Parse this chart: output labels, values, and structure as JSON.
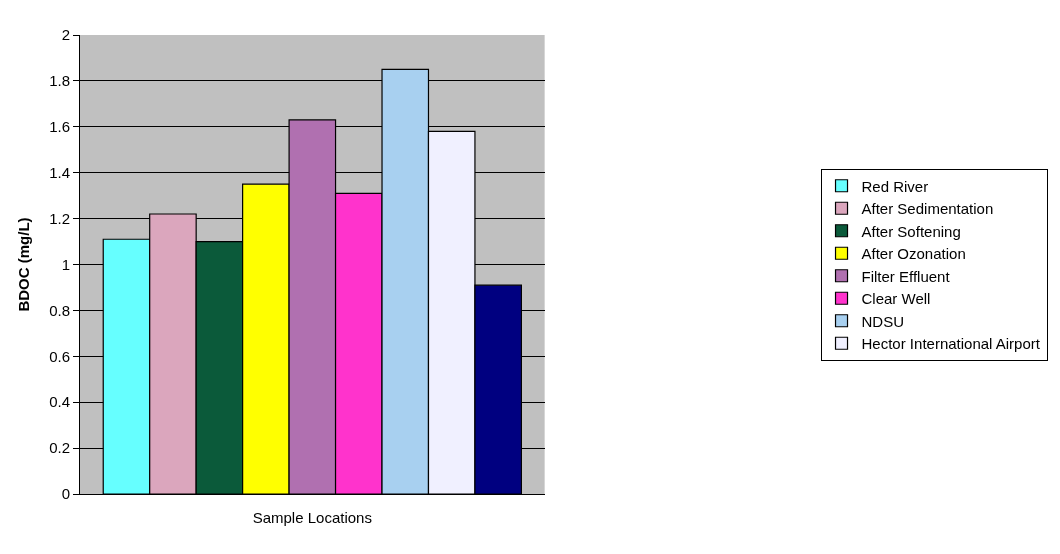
{
  "chart_data": {
    "type": "bar",
    "xlabel": "Sample Locations",
    "ylabel": "BDOC (mg/L)",
    "categories": [
      null
    ],
    "series": [
      {
        "name": "Red River",
        "color": "#66ffff",
        "values": [
          1.11
        ]
      },
      {
        "name": "After Sedimentation",
        "color": "#dba6bd",
        "values": [
          1.22
        ]
      },
      {
        "name": "After Softening",
        "color": "#0b5a3a",
        "values": [
          1.1
        ]
      },
      {
        "name": "After Ozonation",
        "color": "#ffff00",
        "values": [
          1.35
        ]
      },
      {
        "name": "Filter Effluent",
        "color": "#b070b0",
        "values": [
          1.63
        ]
      },
      {
        "name": "Clear Well",
        "color": "#ff33cc",
        "values": [
          1.31
        ]
      },
      {
        "name": "NDSU",
        "color": "#a8d0f0",
        "values": [
          1.85
        ]
      },
      {
        "name": "Hector International Airport",
        "color": "#f0f0ff",
        "values": [
          1.58
        ]
      },
      {
        "color": "#000080",
        "values": [
          0.91
        ]
      }
    ],
    "ylim": [
      0,
      2
    ],
    "yticks": [
      0,
      0.2,
      0.4,
      0.6,
      0.8,
      1,
      1.2,
      1.4,
      1.6,
      1.8,
      2
    ],
    "grid": "y",
    "legend": "right"
  }
}
